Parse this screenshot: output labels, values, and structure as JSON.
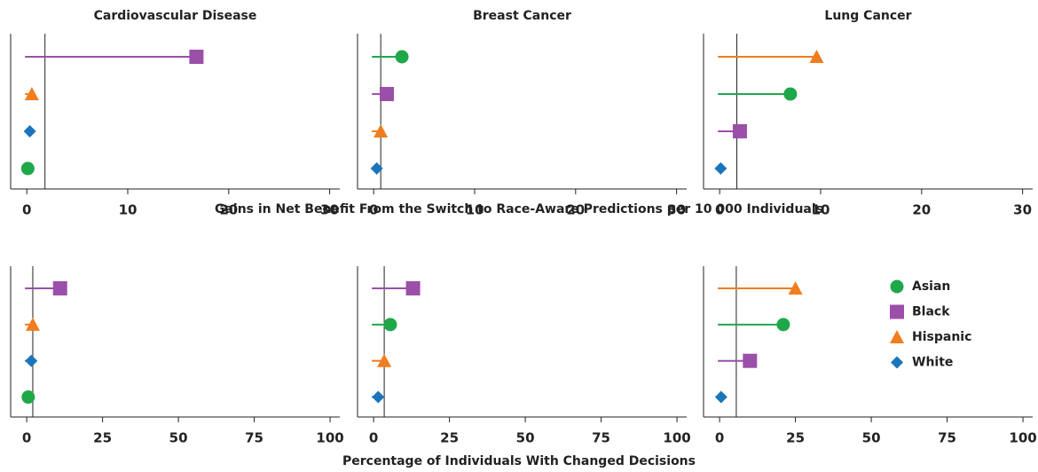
{
  "legend": [
    {
      "name": "Asian",
      "color": "#1fa84a",
      "marker": "circle"
    },
    {
      "name": "Black",
      "color": "#9b4fa8",
      "marker": "square"
    },
    {
      "name": "Hispanic",
      "color": "#f07d1e",
      "marker": "triangle"
    },
    {
      "name": "White",
      "color": "#1b75bb",
      "marker": "diamond"
    }
  ],
  "legend_position": "upper right",
  "axis_labels": [
    "Gains in Net Benefit From the Switch to Race-Aware Predictions per 10 000 Individuals",
    "Percentage of Individuals With Changed Decisions"
  ],
  "chart_data": [
    {
      "type": "lollipop",
      "title": "Cardiovascular Disease",
      "xlim": [
        -1.6,
        31
      ],
      "xticks": [
        0,
        10,
        20,
        30
      ],
      "ref_line": 1.8,
      "series": [
        {
          "name": "Black",
          "values": [
            16.8
          ]
        },
        {
          "name": "Hispanic",
          "values": [
            0.5
          ]
        },
        {
          "name": "White",
          "values": [
            0.3
          ]
        },
        {
          "name": "Asian",
          "values": [
            0.1
          ]
        }
      ]
    },
    {
      "type": "lollipop",
      "title": "Breast Cancer",
      "xlim": [
        -1.6,
        31
      ],
      "xticks": [
        0,
        10,
        20,
        30
      ],
      "ref_line": 0.7,
      "series": [
        {
          "name": "Asian",
          "values": [
            2.8
          ]
        },
        {
          "name": "Black",
          "values": [
            1.3
          ]
        },
        {
          "name": "Hispanic",
          "values": [
            0.7
          ]
        },
        {
          "name": "White",
          "values": [
            0.3
          ]
        }
      ]
    },
    {
      "type": "lollipop",
      "title": "Lung Cancer",
      "xlim": [
        -1.6,
        31
      ],
      "xticks": [
        0,
        10,
        20,
        30
      ],
      "ref_line": 1.7,
      "series": [
        {
          "name": "Hispanic",
          "values": [
            9.6
          ]
        },
        {
          "name": "Asian",
          "values": [
            7.0
          ]
        },
        {
          "name": "Black",
          "values": [
            2.0
          ]
        },
        {
          "name": "White",
          "values": [
            0.1
          ]
        }
      ]
    },
    {
      "type": "lollipop",
      "xlim": [
        -5.3,
        103.2
      ],
      "xticks": [
        0,
        25,
        50,
        75,
        100
      ],
      "ref_line": 2,
      "series": [
        {
          "name": "Black",
          "values": [
            11
          ]
        },
        {
          "name": "Hispanic",
          "values": [
            2
          ]
        },
        {
          "name": "White",
          "values": [
            1.5
          ]
        },
        {
          "name": "Asian",
          "values": [
            0.5
          ]
        }
      ]
    },
    {
      "type": "lollipop",
      "xlim": [
        -5.3,
        103.2
      ],
      "xticks": [
        0,
        25,
        50,
        75,
        100
      ],
      "ref_line": 3.5,
      "series": [
        {
          "name": "Black",
          "values": [
            13
          ]
        },
        {
          "name": "Asian",
          "values": [
            5.5
          ]
        },
        {
          "name": "Hispanic",
          "values": [
            3.5
          ]
        },
        {
          "name": "White",
          "values": [
            1.5
          ]
        }
      ]
    },
    {
      "type": "lollipop",
      "xlim": [
        -5.3,
        103.2
      ],
      "xticks": [
        0,
        25,
        50,
        75,
        100
      ],
      "ref_line": 5.5,
      "series": [
        {
          "name": "Hispanic",
          "values": [
            25
          ]
        },
        {
          "name": "Asian",
          "values": [
            21
          ]
        },
        {
          "name": "Black",
          "values": [
            10
          ]
        },
        {
          "name": "White",
          "values": [
            0.5
          ]
        }
      ]
    }
  ]
}
